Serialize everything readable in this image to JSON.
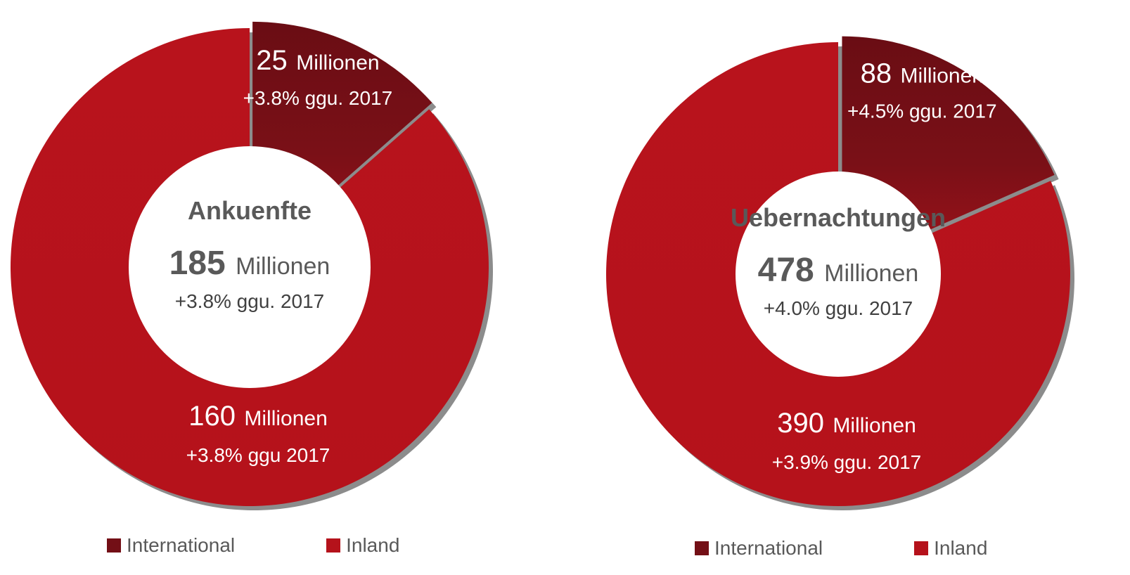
{
  "colors": {
    "international": "#730f16",
    "inland": "#b5121b",
    "label_text": "#ffffff",
    "center_text": "#595959",
    "shadow": "#8c8c8c",
    "hole": "#ffffff"
  },
  "chart_data": [
    {
      "type": "pie",
      "center_title": "Ankuenfte",
      "total": {
        "value": "185",
        "unit": "Millionen",
        "change": "+3.8% ggu. 2017"
      },
      "slices": [
        {
          "name": "International",
          "value": 25,
          "value_label": "25",
          "unit": "Millionen",
          "change": "+3.8% ggu. 2017",
          "exploded": true
        },
        {
          "name": "Inland",
          "value": 160,
          "value_label": "160",
          "unit": "Millionen",
          "change": "+3.8% ggu 2017",
          "exploded": false
        }
      ],
      "legend": [
        "International",
        "Inland"
      ],
      "legend_position": "bottom"
    },
    {
      "type": "pie",
      "center_title": "Uebernachtungen",
      "total": {
        "value": "478",
        "unit": "Millionen",
        "change": "+4.0% ggu. 2017"
      },
      "slices": [
        {
          "name": "International",
          "value": 88,
          "value_label": "88",
          "unit": "Millionen",
          "change": "+4.5% ggu. 2017",
          "exploded": true
        },
        {
          "name": "Inland",
          "value": 390,
          "value_label": "390",
          "unit": "Millionen",
          "change": "+3.9% ggu. 2017",
          "exploded": false
        }
      ],
      "legend": [
        "International",
        "Inland"
      ],
      "legend_position": "bottom"
    }
  ]
}
